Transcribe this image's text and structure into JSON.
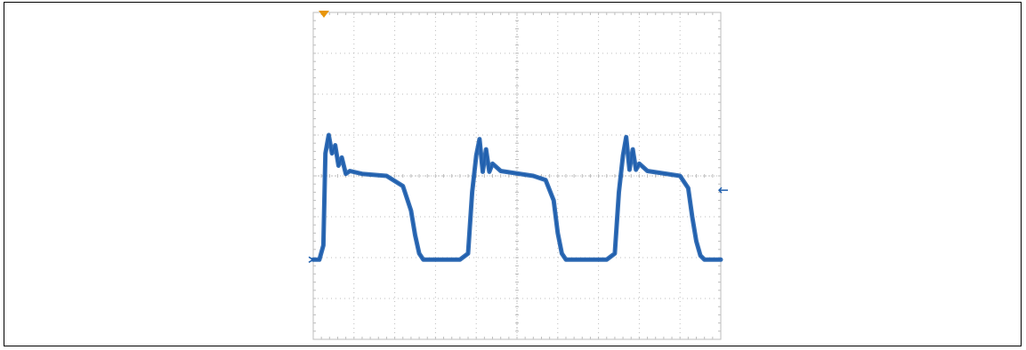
{
  "colors": {
    "frame": "#000000",
    "grid": "#bdbdbd",
    "trace": "#1f5fae",
    "trigger_marker": "#e8960c",
    "markers": "#1f5fae"
  },
  "chart_data": {
    "type": "line",
    "title": "",
    "xlabel": "",
    "ylabel": "",
    "grid": true,
    "divisions": {
      "horizontal": 10,
      "vertical": 8
    },
    "xlim": [
      0,
      10
    ],
    "ylim": [
      -4,
      4
    ],
    "series": [
      {
        "x": [
          0.0,
          0.15,
          0.25,
          0.3,
          0.38,
          0.46,
          0.54,
          0.62,
          0.7,
          0.8,
          0.9,
          1.2,
          1.8,
          2.2,
          2.4,
          2.5,
          2.6,
          2.7,
          3.0,
          3.6,
          3.8,
          3.9,
          4.0,
          4.08,
          4.16,
          4.24,
          4.32,
          4.4,
          4.6,
          5.4,
          5.7,
          5.9,
          6.0,
          6.1,
          6.2,
          6.5,
          7.2,
          7.4,
          7.5,
          7.6,
          7.68,
          7.76,
          7.84,
          7.92,
          8.0,
          8.2,
          9.0,
          9.2,
          9.3,
          9.4,
          9.5,
          9.6,
          10.0
        ],
        "y": [
          -2.05,
          -2.05,
          -1.7,
          0.55,
          1.0,
          0.55,
          0.75,
          0.25,
          0.45,
          0.05,
          0.12,
          0.05,
          0.0,
          -0.25,
          -0.85,
          -1.45,
          -1.9,
          -2.05,
          -2.05,
          -2.05,
          -1.9,
          -0.4,
          0.5,
          0.9,
          0.1,
          0.65,
          0.1,
          0.3,
          0.12,
          0.0,
          -0.1,
          -0.6,
          -1.4,
          -1.9,
          -2.05,
          -2.05,
          -2.05,
          -1.9,
          -0.4,
          0.5,
          0.95,
          0.15,
          0.65,
          0.15,
          0.3,
          0.12,
          0.0,
          -0.3,
          -1.0,
          -1.6,
          -1.95,
          -2.05,
          -2.05
        ]
      }
    ]
  }
}
